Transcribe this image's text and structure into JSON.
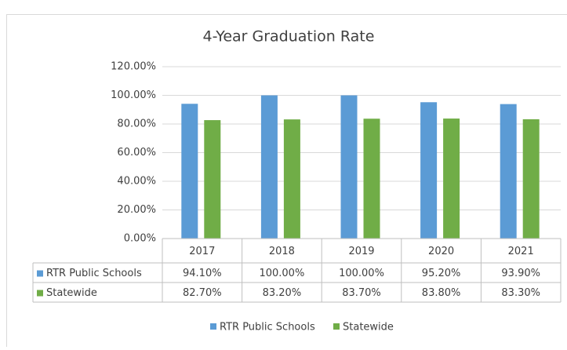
{
  "chart_data": {
    "type": "bar",
    "title": "4-Year Graduation Rate",
    "categories": [
      "2017",
      "2018",
      "2019",
      "2020",
      "2021"
    ],
    "series": [
      {
        "name": "RTR Public Schools",
        "color": "#5b9bd5",
        "values": [
          94.1,
          100,
          100,
          95.2,
          93.9
        ],
        "value_labels": [
          "94.10%",
          "100.00%",
          "100.00%",
          "95.20%",
          "93.90%"
        ]
      },
      {
        "name": "Statewide",
        "color": "#70ad47",
        "values": [
          82.7,
          83.2,
          83.7,
          83.8,
          83.3
        ],
        "value_labels": [
          "82.70%",
          "83.20%",
          "83.70%",
          "83.80%",
          "83.30%"
        ]
      }
    ],
    "ylim": [
      0,
      120
    ],
    "yticks": [
      {
        "value": 0,
        "label": "0.00%"
      },
      {
        "value": 20,
        "label": "20.00%"
      },
      {
        "value": 40,
        "label": "40.00%"
      },
      {
        "value": 60,
        "label": "60.00%"
      },
      {
        "value": 80,
        "label": "80.00%"
      },
      {
        "value": 100,
        "label": "100.00%"
      },
      {
        "value": 120,
        "label": "120.00%"
      }
    ],
    "grid": true,
    "legend": "bottom"
  }
}
